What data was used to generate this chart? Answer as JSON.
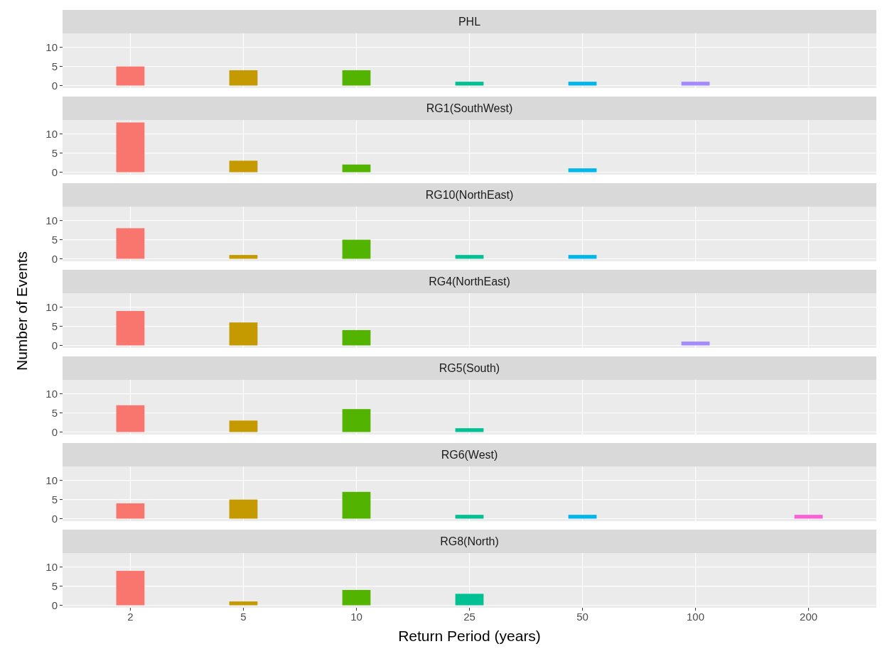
{
  "chart_data": [
    {
      "type": "bar",
      "title": "PHL",
      "categories": [
        "2",
        "5",
        "10",
        "25",
        "50",
        "100",
        "200"
      ],
      "values": [
        5,
        4,
        4,
        1,
        1,
        1,
        null
      ],
      "colors": [
        "#f8766d",
        "#c49a00",
        "#53b400",
        "#00c094",
        "#00b6eb",
        "#a58aff",
        null
      ],
      "ylim": [
        -0.65,
        13.65
      ],
      "yticks": [
        0,
        5,
        10
      ],
      "grid": true,
      "tick_labels": "y"
    },
    {
      "type": "bar",
      "title": "RG1(SouthWest)",
      "categories": [
        "2",
        "5",
        "10",
        "25",
        "50",
        "100",
        "200"
      ],
      "values": [
        13,
        3,
        2,
        null,
        1,
        null,
        null
      ],
      "colors": [
        "#f8766d",
        "#c49a00",
        "#53b400",
        null,
        "#00b6eb",
        null,
        null
      ],
      "ylim": [
        -0.65,
        13.65
      ],
      "yticks": [
        0,
        5,
        10
      ],
      "grid": true,
      "tick_labels": "y"
    },
    {
      "type": "bar",
      "title": "RG10(NorthEast)",
      "categories": [
        "2",
        "5",
        "10",
        "25",
        "50",
        "100",
        "200"
      ],
      "values": [
        8,
        1,
        5,
        1,
        1,
        null,
        null
      ],
      "colors": [
        "#f8766d",
        "#c49a00",
        "#53b400",
        "#00c094",
        "#00b6eb",
        null,
        null
      ],
      "ylim": [
        -0.65,
        13.65
      ],
      "yticks": [
        0,
        5,
        10
      ],
      "grid": true,
      "tick_labels": "y"
    },
    {
      "type": "bar",
      "title": "RG4(NorthEast)",
      "categories": [
        "2",
        "5",
        "10",
        "25",
        "50",
        "100",
        "200"
      ],
      "values": [
        9,
        6,
        4,
        null,
        null,
        1,
        null
      ],
      "colors": [
        "#f8766d",
        "#c49a00",
        "#53b400",
        null,
        null,
        "#a58aff",
        null
      ],
      "ylim": [
        -0.65,
        13.65
      ],
      "yticks": [
        0,
        5,
        10
      ],
      "grid": true,
      "tick_labels": "y",
      "ylabel": "Number of Events"
    },
    {
      "type": "bar",
      "title": "RG5(South)",
      "categories": [
        "2",
        "5",
        "10",
        "25",
        "50",
        "100",
        "200"
      ],
      "values": [
        7,
        3,
        6,
        1,
        null,
        null,
        null
      ],
      "colors": [
        "#f8766d",
        "#c49a00",
        "#53b400",
        "#00c094",
        null,
        null,
        null
      ],
      "ylim": [
        -0.65,
        13.65
      ],
      "yticks": [
        0,
        5,
        10
      ],
      "grid": true,
      "tick_labels": "y"
    },
    {
      "type": "bar",
      "title": "RG6(West)",
      "categories": [
        "2",
        "5",
        "10",
        "25",
        "50",
        "100",
        "200"
      ],
      "values": [
        4,
        5,
        7,
        1,
        1,
        null,
        1
      ],
      "colors": [
        "#f8766d",
        "#c49a00",
        "#53b400",
        "#00c094",
        "#00b6eb",
        null,
        "#fb61d7"
      ],
      "ylim": [
        -0.65,
        13.65
      ],
      "yticks": [
        0,
        5,
        10
      ],
      "grid": true,
      "tick_labels": "y"
    },
    {
      "type": "bar",
      "title": "RG8(North)",
      "categories": [
        "2",
        "5",
        "10",
        "25",
        "50",
        "100",
        "200"
      ],
      "values": [
        9,
        1,
        4,
        3,
        null,
        null,
        null
      ],
      "colors": [
        "#f8766d",
        "#c49a00",
        "#53b400",
        "#00c094",
        null,
        null,
        null
      ],
      "ylim": [
        -0.65,
        13.65
      ],
      "yticks": [
        0,
        5,
        10
      ],
      "grid": true,
      "xlabel": "Return Period (years)"
    }
  ]
}
